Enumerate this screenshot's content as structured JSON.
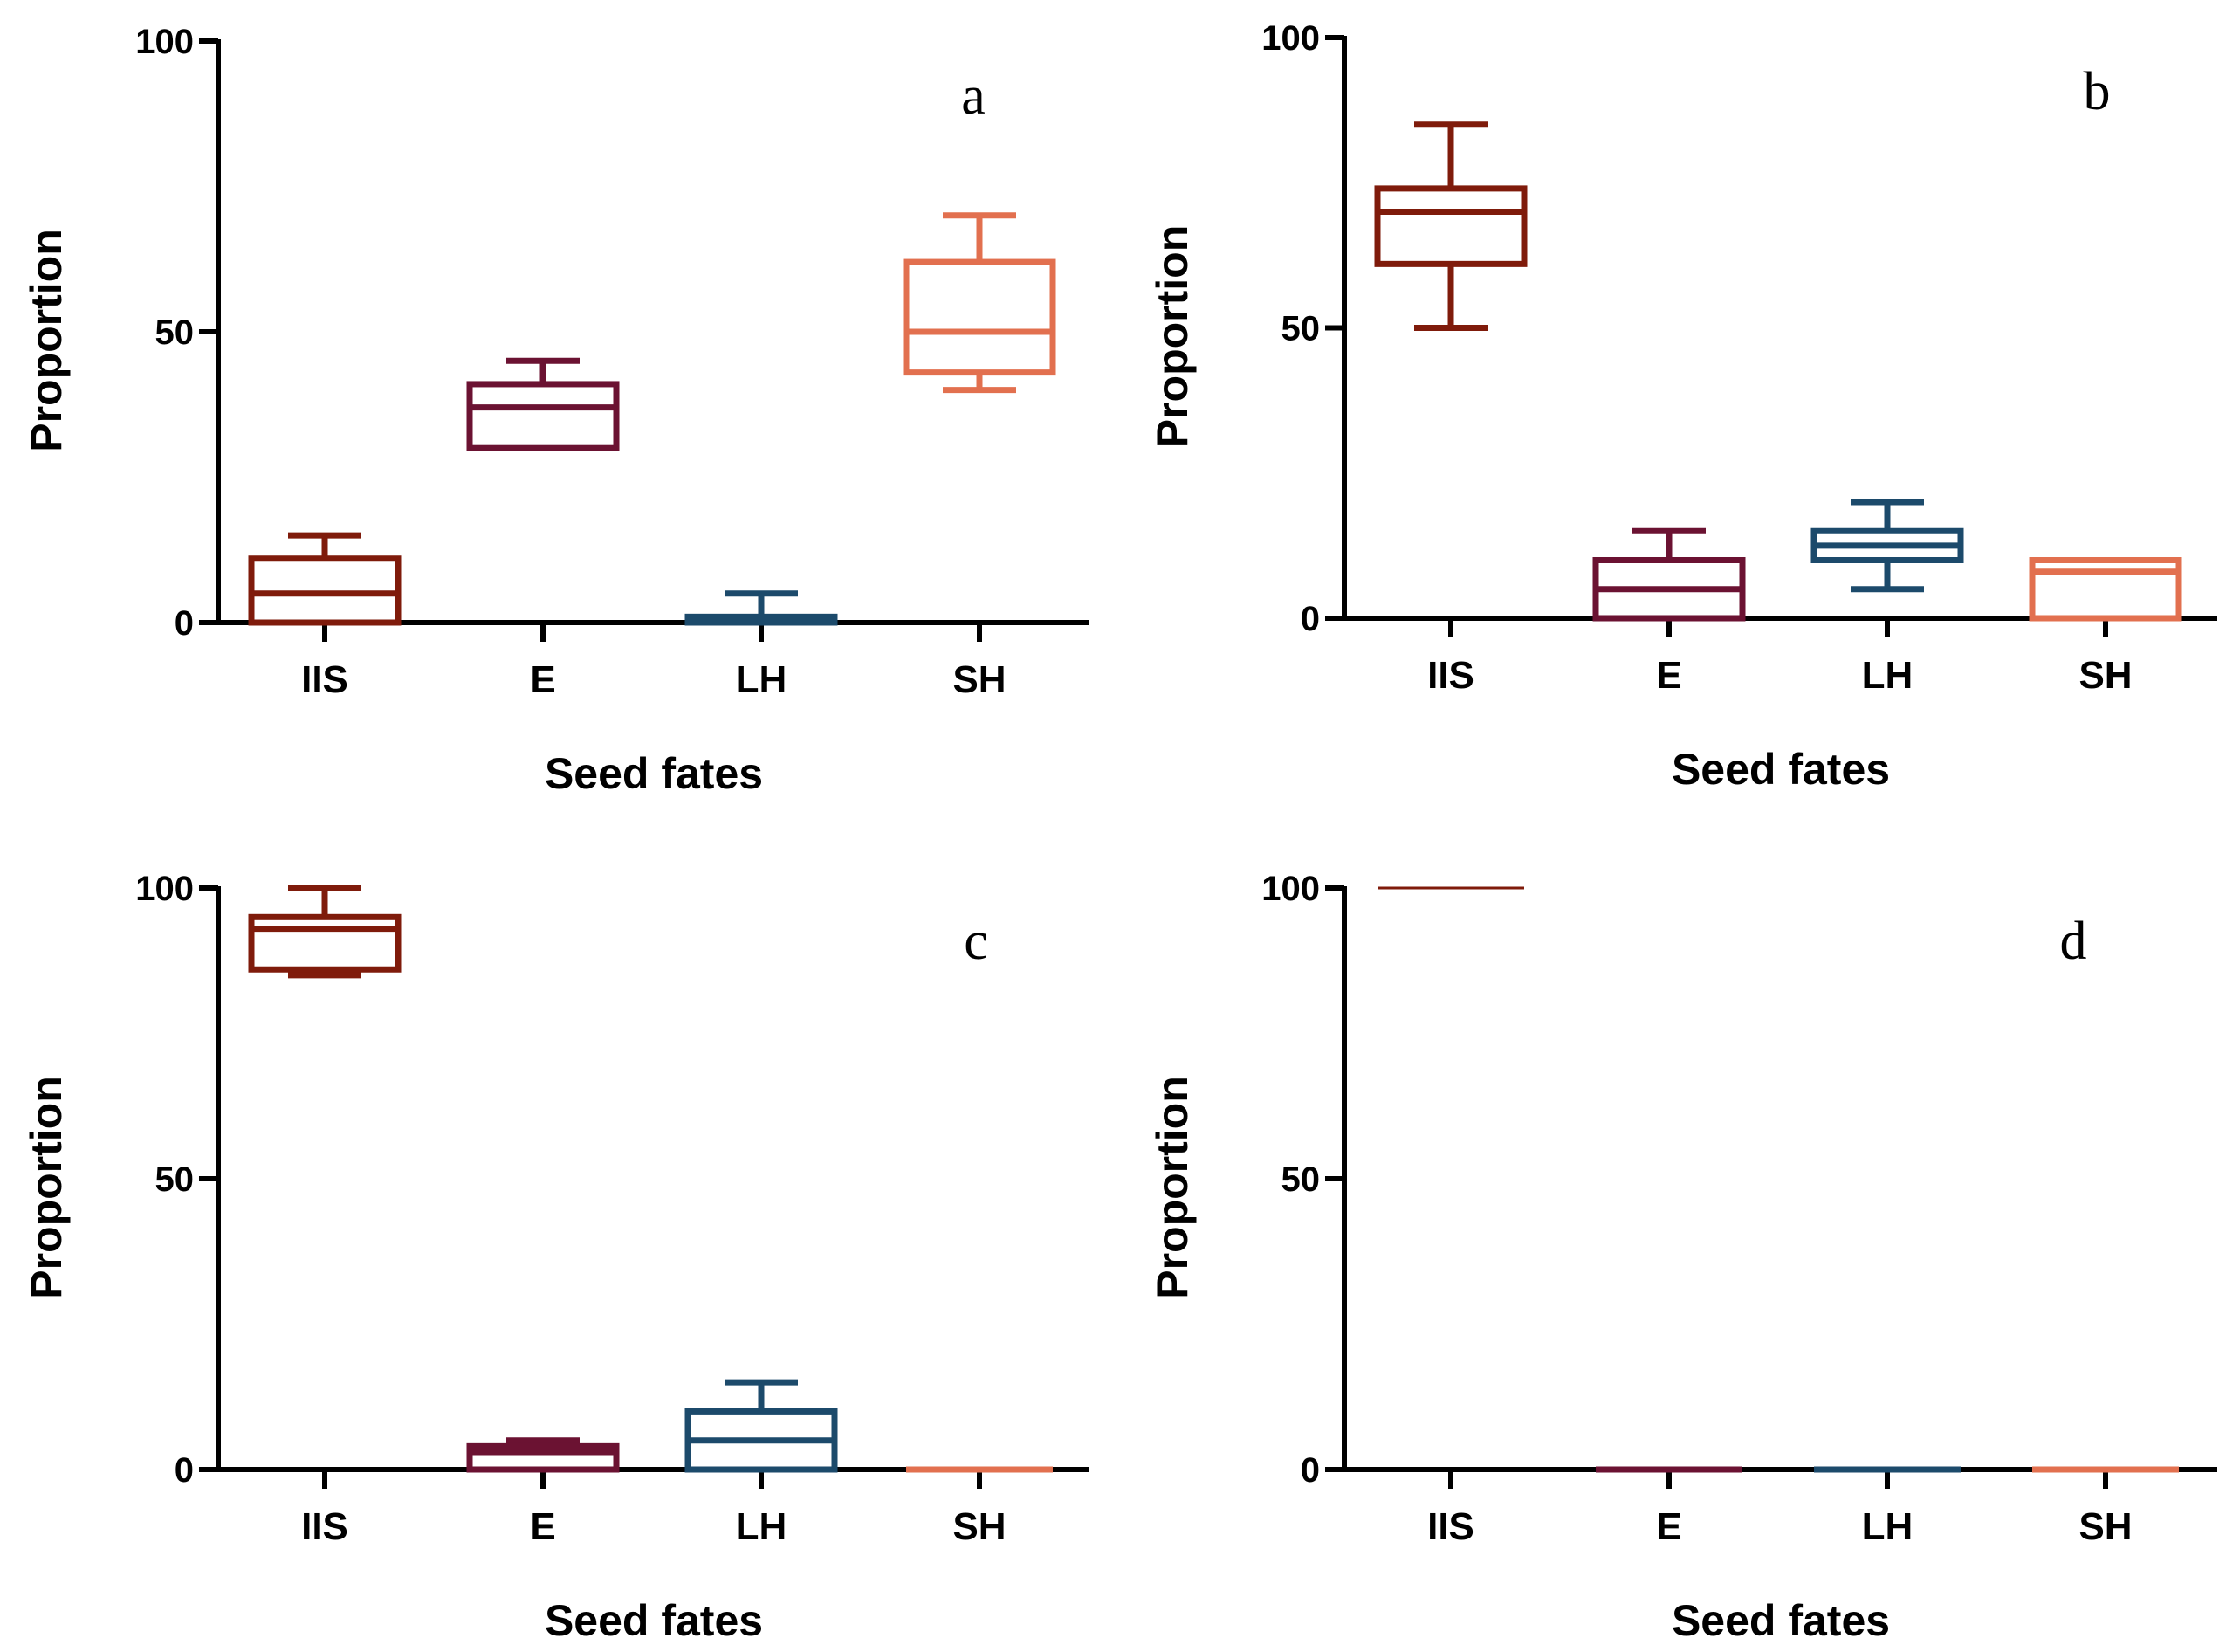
{
  "colors": {
    "IIS": "#7f1b0b",
    "E": "#6b1232",
    "LH": "#1c4a6b",
    "SH": "#e2704f",
    "axis": "#000000"
  },
  "chart_data": [
    {
      "type": "box",
      "panel": "a",
      "xlabel": "Seed fates",
      "ylabel": "Proportion",
      "ylim": [
        0,
        100
      ],
      "yticks": [
        0,
        50,
        100
      ],
      "categories": [
        "IIS",
        "E",
        "LH",
        "SH"
      ],
      "boxes": [
        {
          "min": 0,
          "q1": 0,
          "median": 5,
          "q3": 11,
          "max": 15
        },
        {
          "min": 30,
          "q1": 30,
          "median": 37,
          "q3": 41,
          "max": 45
        },
        {
          "min": 0,
          "q1": 0,
          "median": 0,
          "q3": 1,
          "max": 5
        },
        {
          "min": 40,
          "q1": 43,
          "median": 50,
          "q3": 62,
          "max": 70
        }
      ]
    },
    {
      "type": "box",
      "panel": "b",
      "xlabel": "Seed fates",
      "ylabel": "Proportion",
      "ylim": [
        0,
        100
      ],
      "yticks": [
        0,
        50,
        100
      ],
      "categories": [
        "IIS",
        "E",
        "LH",
        "SH"
      ],
      "boxes": [
        {
          "min": 50,
          "q1": 61,
          "median": 70,
          "q3": 74,
          "max": 85
        },
        {
          "min": 0,
          "q1": 0,
          "median": 5,
          "q3": 10,
          "max": 15
        },
        {
          "min": 5,
          "q1": 10,
          "median": 12.5,
          "q3": 15,
          "max": 20
        },
        {
          "min": 0,
          "q1": 0,
          "median": 8,
          "q3": 10,
          "max": 10
        }
      ]
    },
    {
      "type": "box",
      "panel": "c",
      "xlabel": "Seed fates",
      "ylabel": "Proportion",
      "ylim": [
        0,
        100
      ],
      "yticks": [
        0,
        50,
        100
      ],
      "categories": [
        "IIS",
        "E",
        "LH",
        "SH"
      ],
      "boxes": [
        {
          "min": 85,
          "q1": 86,
          "median": 93,
          "q3": 95,
          "max": 100
        },
        {
          "min": 0,
          "q1": 0,
          "median": 3,
          "q3": 4,
          "max": 5
        },
        {
          "min": 0,
          "q1": 0,
          "median": 5,
          "q3": 10,
          "max": 15
        },
        {
          "min": 0,
          "q1": 0,
          "median": 0,
          "q3": 0,
          "max": 0
        }
      ]
    },
    {
      "type": "box",
      "panel": "d",
      "xlabel": "Seed fates",
      "ylabel": "Proportion",
      "ylim": [
        0,
        100
      ],
      "yticks": [
        0,
        50,
        100
      ],
      "categories": [
        "IIS",
        "E",
        "LH",
        "SH"
      ],
      "boxes": [
        {
          "min": 100,
          "q1": 100,
          "median": 100,
          "q3": 100,
          "max": 100
        },
        {
          "min": 0,
          "q1": 0,
          "median": 0,
          "q3": 0,
          "max": 0
        },
        {
          "min": 0,
          "q1": 0,
          "median": 0,
          "q3": 0,
          "max": 0
        },
        {
          "min": 0,
          "q1": 0,
          "median": 0,
          "q3": 0,
          "max": 0
        }
      ]
    }
  ]
}
